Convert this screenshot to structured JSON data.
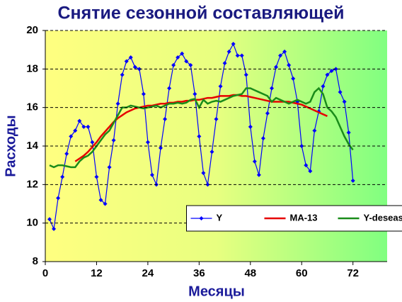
{
  "chart_data": {
    "type": "line",
    "title": "Снятие сезонной составляющей",
    "x_label": "Месяцы",
    "y_label": "Расходы",
    "x": [
      1,
      2,
      3,
      4,
      5,
      6,
      7,
      8,
      9,
      10,
      11,
      12,
      13,
      14,
      15,
      16,
      17,
      18,
      19,
      20,
      21,
      22,
      23,
      24,
      25,
      26,
      27,
      28,
      29,
      30,
      31,
      32,
      33,
      34,
      35,
      36,
      37,
      38,
      39,
      40,
      41,
      42,
      43,
      44,
      45,
      46,
      47,
      48,
      49,
      50,
      51,
      52,
      53,
      54,
      55,
      56,
      57,
      58,
      59,
      60,
      61,
      62,
      63,
      64,
      65,
      66,
      67,
      68,
      69,
      70,
      71,
      72
    ],
    "series": [
      {
        "name": "Y",
        "color": "#0000ff",
        "marker": true,
        "values": [
          10.2,
          9.7,
          11.3,
          12.4,
          13.6,
          14.5,
          14.8,
          15.3,
          15.0,
          15.0,
          14.2,
          12.4,
          11.2,
          11.0,
          12.9,
          14.3,
          16.2,
          17.7,
          18.4,
          18.6,
          18.1,
          18.0,
          16.7,
          14.2,
          12.5,
          12.0,
          13.9,
          15.4,
          17.0,
          18.2,
          18.6,
          18.8,
          18.4,
          18.2,
          16.7,
          14.5,
          12.6,
          12.0,
          13.7,
          15.4,
          17.1,
          18.3,
          18.9,
          19.3,
          18.7,
          18.7,
          17.7,
          15.0,
          13.2,
          12.5,
          14.4,
          15.7,
          17.0,
          18.1,
          18.7,
          18.9,
          18.2,
          17.5,
          16.3,
          14.0,
          13.0,
          12.7,
          14.8,
          15.8,
          17.1,
          17.7,
          17.9,
          18.0,
          16.8,
          16.3,
          14.7,
          12.2
        ]
      },
      {
        "name": "MA-13",
        "color": "#e60000",
        "marker": false,
        "values": [
          null,
          null,
          null,
          null,
          null,
          null,
          13.2,
          13.35,
          13.5,
          13.7,
          13.95,
          14.2,
          14.5,
          14.75,
          15.0,
          15.25,
          15.45,
          15.6,
          15.75,
          15.85,
          15.95,
          16.0,
          16.05,
          16.1,
          16.1,
          16.15,
          16.2,
          16.2,
          16.25,
          16.25,
          16.3,
          16.3,
          16.35,
          16.35,
          16.4,
          16.4,
          16.45,
          16.5,
          16.5,
          16.55,
          16.6,
          16.6,
          16.6,
          16.65,
          16.65,
          16.6,
          16.6,
          16.55,
          16.5,
          16.45,
          16.4,
          16.35,
          16.3,
          16.3,
          16.3,
          16.3,
          16.3,
          16.25,
          16.2,
          16.15,
          16.05,
          15.95,
          15.85,
          15.75,
          15.65,
          15.55,
          null,
          null,
          null,
          null,
          null,
          null
        ]
      },
      {
        "name": "Y-deseas",
        "color": "#1a8c1a",
        "marker": false,
        "values": [
          13.0,
          12.9,
          13.0,
          13.0,
          12.95,
          12.9,
          12.9,
          13.2,
          13.4,
          13.5,
          13.7,
          14.0,
          14.3,
          14.6,
          14.8,
          15.2,
          15.6,
          16.0,
          16.0,
          16.1,
          16.05,
          16.0,
          15.95,
          16.0,
          16.05,
          16.1,
          16.0,
          16.1,
          16.2,
          16.2,
          16.25,
          16.2,
          16.25,
          16.4,
          16.45,
          16.0,
          16.4,
          16.2,
          16.3,
          16.35,
          16.3,
          16.4,
          16.5,
          16.6,
          16.65,
          16.7,
          17.0,
          17.0,
          16.9,
          16.8,
          16.7,
          16.6,
          16.3,
          16.5,
          16.4,
          16.3,
          16.2,
          16.3,
          16.4,
          16.3,
          16.2,
          16.3,
          16.8,
          17.0,
          16.7,
          16.0,
          15.8,
          15.5,
          15.0,
          14.5,
          14.1,
          13.8
        ]
      }
    ],
    "xlim": [
      0,
      80
    ],
    "xticks": [
      0,
      12,
      24,
      36,
      48,
      60,
      72
    ],
    "ylim": [
      8,
      20
    ],
    "yticks": [
      8,
      10,
      12,
      14,
      16,
      18,
      20
    ],
    "grid": true,
    "legend_position": "bottom"
  }
}
